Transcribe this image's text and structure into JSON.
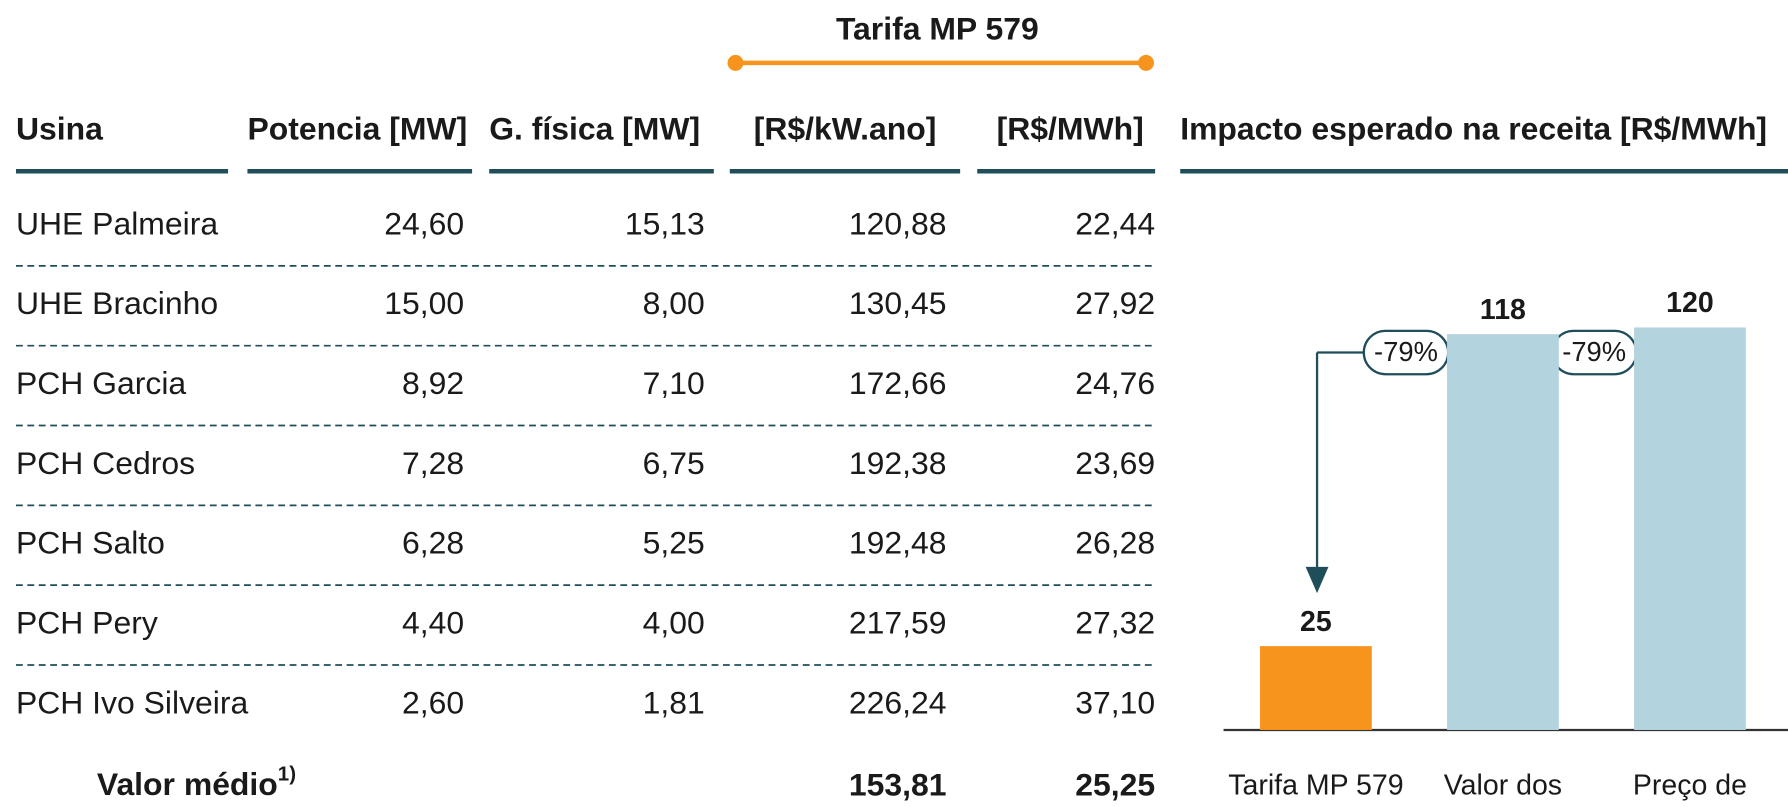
{
  "table": {
    "group_header": "Tarifa MP 579",
    "header": [
      "Usina",
      "Potencia [MW]",
      "G. física [MW]",
      "[R$/kW.ano]",
      "[R$/MWh]"
    ],
    "rows": [
      [
        "UHE Palmeira",
        "24,60",
        "15,13",
        "120,88",
        "22,44"
      ],
      [
        "UHE Bracinho",
        "15,00",
        "8,00",
        "130,45",
        "27,92"
      ],
      [
        "PCH Garcia",
        "8,92",
        "7,10",
        "172,66",
        "24,76"
      ],
      [
        "PCH Cedros",
        "7,28",
        "6,75",
        "192,38",
        "23,69"
      ],
      [
        "PCH Salto",
        "6,28",
        "5,25",
        "192,48",
        "26,28"
      ],
      [
        "PCH Pery",
        "4,40",
        "4,00",
        "217,59",
        "27,32"
      ],
      [
        "PCH Ivo Silveira",
        "2,60",
        "1,81",
        "226,24",
        "37,10"
      ]
    ],
    "footer": {
      "label": "Valor médio",
      "note": "1)",
      "values": [
        "153,81",
        "25,25"
      ]
    }
  },
  "chart_data": {
    "type": "bar",
    "title": "Impacto esperado na receita [R$/MWh]",
    "categories": [
      "Tarifa MP 579",
      "Valor dos",
      "Preço de"
    ],
    "values": [
      25,
      118,
      120
    ],
    "colors": [
      "#f7941d",
      "#b3d3df",
      "#b3d3df"
    ],
    "annotations": [
      "-79%",
      "-79%"
    ]
  }
}
